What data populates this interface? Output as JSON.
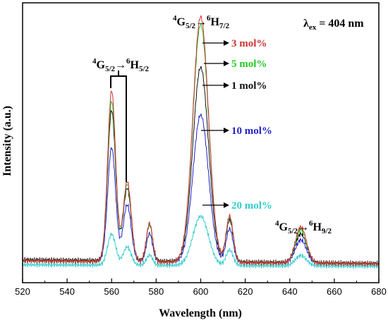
{
  "chart_data": {
    "type": "line",
    "xlabel": "Wavelength (nm)",
    "ylabel": "Intensity (a.u.)",
    "xlim": [
      520,
      680
    ],
    "x_ticks": [
      520,
      540,
      560,
      580,
      600,
      620,
      640,
      660,
      680
    ],
    "y_ticks": false,
    "grid": false,
    "excitation": {
      "symbol": "λ",
      "sub": "ex",
      "value": " = 404 nm"
    },
    "transitions": [
      {
        "sup_left": "4",
        "base1": "G",
        "sub1": "5/2",
        "arrow": "→",
        "sup_right": "6",
        "base2": "H",
        "sub2": "5/2"
      },
      {
        "sup_left": "4",
        "base1": "G",
        "sub1": "5/2",
        "arrow": "→",
        "sup_right": "6",
        "base2": "H",
        "sub2": "7/2"
      },
      {
        "sup_left": "4",
        "base1": "G",
        "sub1": "5/2",
        "arrow": "→",
        "sup_right": "6",
        "base2": "H",
        "sub2": "9/2"
      }
    ],
    "peaks_nm": [
      560,
      567,
      577,
      600,
      613,
      645
    ],
    "series": [
      {
        "name": "3 mol%",
        "color": "#cc3333",
        "baseline": 0.03,
        "peaks": [
          0.66,
          0.31,
          0.15,
          0.95,
          0.18,
          0.14
        ]
      },
      {
        "name": "5 mol%",
        "color": "#22cc22",
        "baseline": 0.03,
        "peaks": [
          0.62,
          0.3,
          0.145,
          0.92,
          0.175,
          0.13
        ]
      },
      {
        "name": "1 mol%",
        "color": "#111111",
        "baseline": 0.035,
        "peaks": [
          0.58,
          0.28,
          0.14,
          0.75,
          0.16,
          0.11
        ]
      },
      {
        "name": "10 mol%",
        "color": "#2222cc",
        "baseline": 0.03,
        "peaks": [
          0.44,
          0.22,
          0.11,
          0.57,
          0.13,
          0.09
        ]
      },
      {
        "name": "20 mol%",
        "color": "#33cccc",
        "baseline": 0.015,
        "peaks": [
          0.12,
          0.07,
          0.04,
          0.19,
          0.06,
          0.04
        ]
      }
    ]
  }
}
